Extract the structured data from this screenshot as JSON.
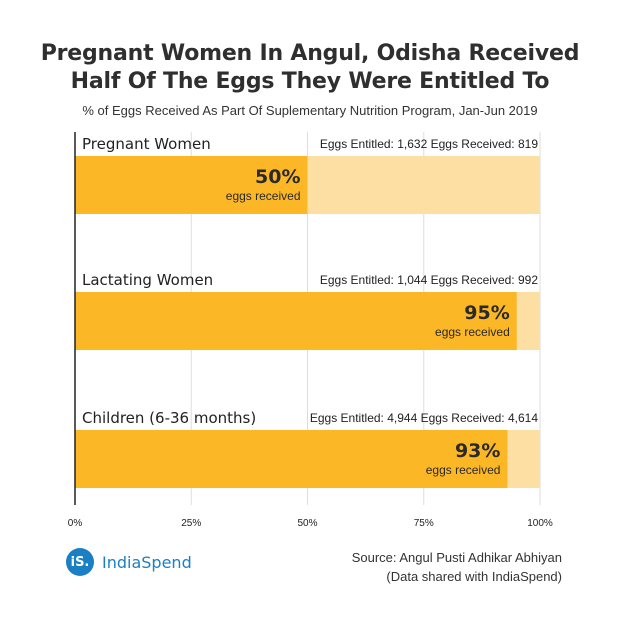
{
  "title_line1": "Pregnant Women In Angul, Odisha Received",
  "title_line2": "Half Of The Eggs They Were Entitled To",
  "subtitle": "% of Eggs Received As Part Of Suplementary Nutrition Program, Jan-Jun 2019",
  "logo": {
    "mark": "iS.",
    "text": "IndiaSpend"
  },
  "source_line1": "Source: Angul Pusti Adhikar Abhiyan",
  "source_line2": "(Data shared with IndiaSpend)",
  "colors": {
    "received": "#FBB726",
    "entitled": "#FEDFA3",
    "grid": "#DDDDDD",
    "axis": "#222222"
  },
  "chart_data": {
    "type": "bar",
    "orientation": "horizontal",
    "xlim": [
      0,
      100
    ],
    "x_ticks": [
      "0%",
      "25%",
      "50%",
      "75%",
      "100%"
    ],
    "grid": true,
    "categories": [
      "Pregnant Women",
      "Lactating Women",
      "Children (6-36 months)"
    ],
    "values": [
      50,
      95,
      93
    ],
    "value_labels": [
      "50%",
      "95%",
      "93%"
    ],
    "value_caption": "eggs received",
    "annotations": [
      "Eggs Entitled: 1,632 Eggs Received: 819",
      "Eggs Entitled: 1,044 Eggs Received: 992",
      "Eggs Entitled: 4,944 Eggs Received: 4,614"
    ],
    "series": [
      {
        "name": "eggs received",
        "values": [
          50,
          95,
          93
        ]
      },
      {
        "values": [
          100,
          100,
          100
        ]
      }
    ]
  }
}
